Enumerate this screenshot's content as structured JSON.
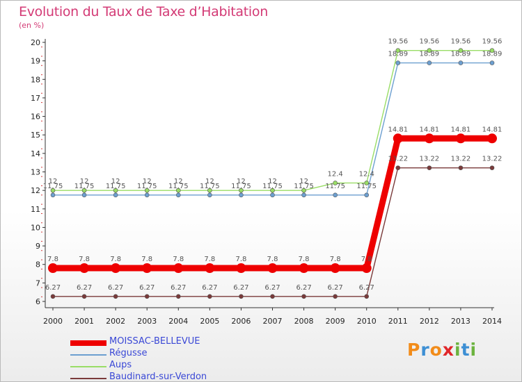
{
  "chart_data": {
    "type": "line",
    "title": "Evolution du Taux de Taxe d’Habitation",
    "unit_label": "(en %)",
    "x": [
      "2000",
      "2001",
      "2002",
      "2003",
      "2004",
      "2005",
      "2006",
      "2007",
      "2008",
      "2009",
      "2010",
      "2011",
      "2012",
      "2013",
      "2014"
    ],
    "ylim": [
      6,
      20
    ],
    "yticks": [
      6,
      7,
      8,
      9,
      10,
      11,
      12,
      13,
      14,
      15,
      16,
      17,
      18,
      19,
      20
    ],
    "grid": false,
    "legend_position": "bottom-left",
    "series": [
      {
        "name": "MOISSAC-BELLEVUE",
        "color": "#ee0000",
        "values": [
          7.8,
          7.8,
          7.8,
          7.8,
          7.8,
          7.8,
          7.8,
          7.8,
          7.8,
          7.8,
          7.8,
          14.81,
          14.81,
          14.81,
          14.81
        ],
        "labels": [
          "7.8",
          "7.8",
          "7.8",
          "7.8",
          "7.8",
          "7.8",
          "7.8",
          "7.8",
          "7.8",
          "7.8",
          "7.8",
          "14.81",
          "14.81",
          "14.81",
          "14.81"
        ]
      },
      {
        "name": "Régusse",
        "color": "#6c9fd0",
        "values": [
          11.75,
          11.75,
          11.75,
          11.75,
          11.75,
          11.75,
          11.75,
          11.75,
          11.75,
          11.75,
          11.75,
          18.89,
          18.89,
          18.89,
          18.89
        ],
        "labels": [
          "11.75",
          "11.75",
          "11.75",
          "11.75",
          "11.75",
          "11.75",
          "11.75",
          "11.75",
          "11.75",
          "11.75",
          "11.75",
          "18.89",
          "18.89",
          "18.89",
          "18.89"
        ]
      },
      {
        "name": "Aups",
        "color": "#99dd66",
        "values": [
          12,
          12,
          12,
          12,
          12,
          12,
          12,
          12,
          12,
          12.4,
          12.4,
          19.56,
          19.56,
          19.56,
          19.56
        ],
        "labels": [
          "12",
          "12",
          "12",
          "12",
          "12",
          "12",
          "12",
          "12",
          "12",
          "12.4",
          "12.4",
          "19.56",
          "19.56",
          "19.56",
          "19.56"
        ]
      },
      {
        "name": "Baudinard-sur-Verdon",
        "color": "#7a3a3a",
        "values": [
          6.27,
          6.27,
          6.27,
          6.27,
          6.27,
          6.27,
          6.27,
          6.27,
          6.27,
          6.27,
          6.27,
          13.22,
          13.22,
          13.22,
          13.22
        ],
        "labels": [
          "6.27",
          "6.27",
          "6.27",
          "6.27",
          "6.27",
          "6.27",
          "6.27",
          "6.27",
          "6.27",
          "6.27",
          "6.27",
          "13.22",
          "13.22",
          "13.22",
          "13.22"
        ]
      }
    ]
  },
  "legend": [
    {
      "name": "MOISSAC-BELLEVUE",
      "color": "#ee0000"
    },
    {
      "name": "Régusse",
      "color": "#6c9fd0"
    },
    {
      "name": "Aups",
      "color": "#99dd66"
    },
    {
      "name": "Baudinard-sur-Verdon",
      "color": "#7a3a3a"
    }
  ],
  "brand": {
    "letters": [
      "P",
      "r",
      "o",
      "x",
      "i",
      "t",
      "i"
    ],
    "colors": [
      "#f28c1a",
      "#3d8fd4",
      "#f28c1a",
      "#e0262a",
      "#6cb33f",
      "#3d8fd4",
      "#6cb33f"
    ]
  }
}
